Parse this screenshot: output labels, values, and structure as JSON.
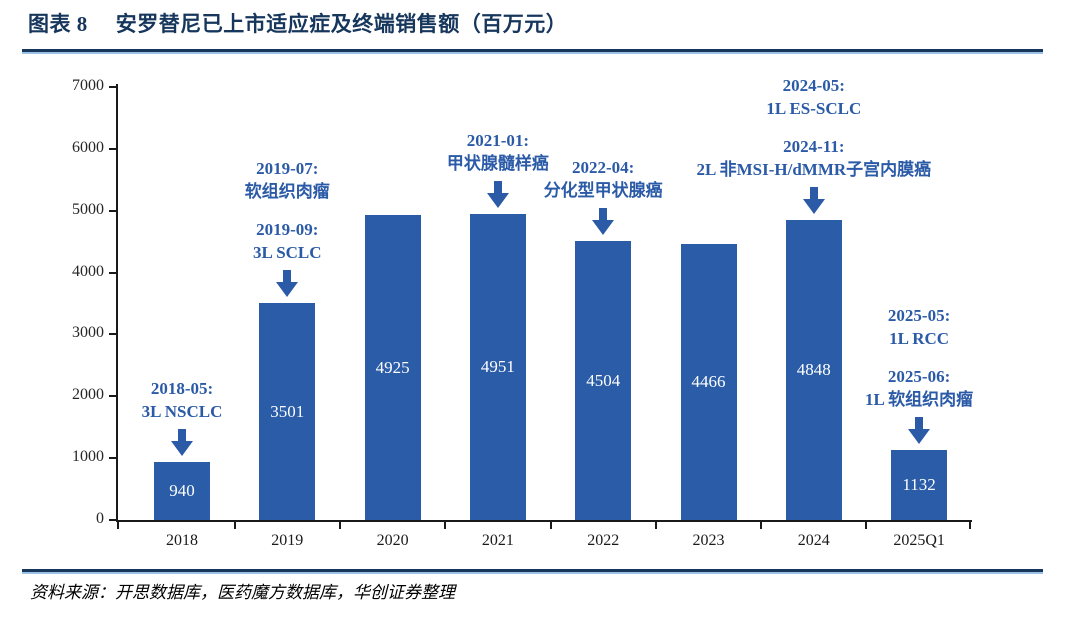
{
  "header": {
    "figure_label": "图表 8",
    "figure_title": "安罗替尼已上市适应症及终端销售额（百万元）"
  },
  "footer": {
    "source": "资料来源：开思数据库，医药魔方数据库，华创证券整理"
  },
  "colors": {
    "bar": "#2A5CA8",
    "annotation_text": "#2B5AA7",
    "title_text": "#16365C",
    "axis_text": "#262626",
    "rule_dark": "#16365C",
    "rule_light": "#9CC2E5",
    "value_label": "#FFFFFF"
  },
  "chart_data": {
    "type": "bar",
    "title": "安罗替尼已上市适应症及终端销售额（百万元）",
    "categories": [
      "2018",
      "2019",
      "2020",
      "2021",
      "2022",
      "2023",
      "2024",
      "2025Q1"
    ],
    "values": [
      940,
      3501,
      4925,
      4951,
      4504,
      4466,
      4848,
      1132
    ],
    "xlabel": "",
    "ylabel": "",
    "ylim": [
      0,
      7000
    ],
    "ytick_step": 1000,
    "ytick_labels": [
      "0",
      "1000",
      "2000",
      "3000",
      "4000",
      "5000",
      "6000",
      "7000"
    ],
    "grid": false,
    "legend": "none",
    "bar_color": "#2A5CA8",
    "annotations": [
      {
        "category": "2018",
        "lines": [
          "2018-05:",
          "3L NSCLC"
        ]
      },
      {
        "category": "2019",
        "lines": [
          "2019-07:",
          "软组织肉瘤"
        ]
      },
      {
        "category": "2019",
        "lines": [
          "2019-09:",
          "3L SCLC"
        ]
      },
      {
        "category": "2021",
        "lines": [
          "2021-01:",
          "甲状腺髓样癌"
        ]
      },
      {
        "category": "2022",
        "lines": [
          "2022-04:",
          "分化型甲状腺癌"
        ]
      },
      {
        "category": "2024",
        "lines": [
          "2024-05:",
          "1L ES-SCLC"
        ]
      },
      {
        "category": "2024",
        "lines": [
          "2024-11:",
          "2L 非MSI-H/dMMR子宫内膜癌"
        ]
      },
      {
        "category": "2025Q1",
        "lines": [
          "2025-05:",
          "1L RCC"
        ]
      },
      {
        "category": "2025Q1",
        "lines": [
          "2025-06:",
          "1L 软组织肉瘤"
        ]
      }
    ]
  }
}
